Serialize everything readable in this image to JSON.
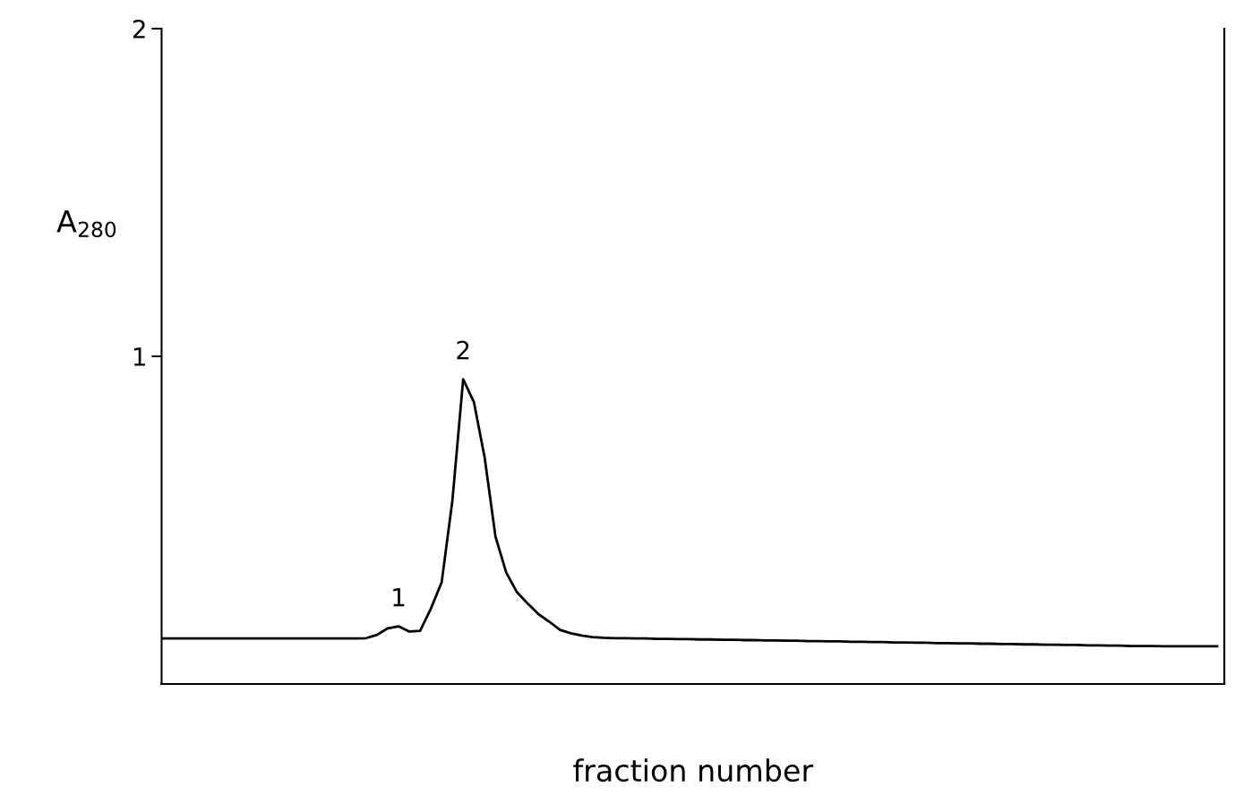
{
  "chart_data": {
    "type": "line",
    "xlabel": "fraction number",
    "ylabel": "A$_{280}$",
    "categories": [
      null,
      null,
      null,
      null,
      null,
      null,
      null,
      null,
      null,
      null,
      null,
      null,
      null,
      null,
      null,
      null,
      null,
      null,
      null,
      null,
      null,
      null,
      null,
      null,
      null,
      null,
      null,
      null,
      null,
      null,
      null,
      null,
      null,
      null,
      null,
      null,
      null,
      null,
      null,
      null,
      null,
      null,
      null,
      null,
      null,
      null,
      null,
      null,
      null,
      null,
      null,
      null,
      null,
      null,
      null,
      null,
      null,
      null,
      null,
      null,
      null,
      null,
      null,
      null,
      null,
      null,
      null,
      null,
      null,
      null,
      null,
      null,
      null,
      null,
      null,
      null,
      null,
      null,
      null,
      null,
      null,
      null,
      null,
      null,
      null,
      null,
      null,
      null,
      null,
      null,
      null,
      null,
      null,
      null,
      null,
      null,
      null,
      null,
      null
    ],
    "series": [
      {
        "color": "#000000",
        "values": [
          0.139,
          0.139,
          0.139,
          0.139,
          0.139,
          0.139,
          0.139,
          0.139,
          0.139,
          0.139,
          0.139,
          0.139,
          0.139,
          0.139,
          0.139,
          0.139,
          0.139,
          0.139,
          0.139,
          0.14,
          0.15,
          0.17,
          0.176,
          0.16,
          0.162,
          0.23,
          0.31,
          0.56,
          0.93,
          0.86,
          0.69,
          0.45,
          0.34,
          0.28,
          0.245,
          0.213,
          0.19,
          0.165,
          0.155,
          0.148,
          0.143,
          0.141,
          0.14,
          0.14,
          0.139,
          0.139,
          0.138,
          0.138,
          0.137,
          0.137,
          0.136,
          0.136,
          0.135,
          0.135,
          0.134,
          0.134,
          0.133,
          0.133,
          0.132,
          0.132,
          0.131,
          0.131,
          0.13,
          0.13,
          0.129,
          0.129,
          0.128,
          0.128,
          0.127,
          0.127,
          0.126,
          0.126,
          0.125,
          0.125,
          0.124,
          0.124,
          0.123,
          0.123,
          0.122,
          0.122,
          0.121,
          0.121,
          0.12,
          0.12,
          0.119,
          0.119,
          0.118,
          0.118,
          0.117,
          0.117,
          0.116,
          0.116,
          0.116,
          0.115,
          0.115,
          0.115,
          0.115,
          0.115,
          0.115
        ]
      }
    ],
    "annotations": [
      {
        "text": "1",
        "y": 0.176
      },
      {
        "text": "2",
        "y": 0.93
      }
    ],
    "ylim": [
      0,
      2
    ],
    "yticks": [
      1,
      2
    ],
    "tick_labels": "y",
    "grid": false,
    "legend": false,
    "marker": "none",
    "line_style": "solid"
  }
}
